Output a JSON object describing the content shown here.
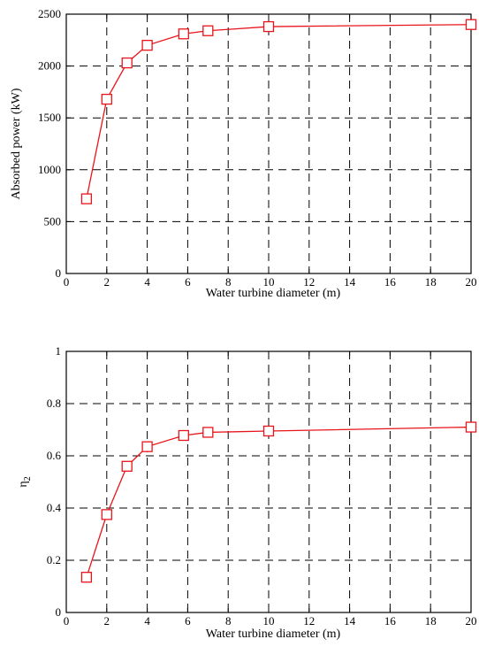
{
  "chart_data": [
    {
      "type": "line",
      "title": "",
      "xlabel": "Water turbine diameter (m)",
      "ylabel": "Absorbed power (kW)",
      "xlim": [
        0,
        20
      ],
      "ylim": [
        0,
        2500
      ],
      "xticks": [
        "0",
        "2",
        "4",
        "6",
        "8",
        "10",
        "12",
        "14",
        "16",
        "18",
        "20"
      ],
      "yticks": [
        "0",
        "500",
        "1000",
        "1500",
        "2000",
        "2500"
      ],
      "grid": true,
      "marker": "square",
      "color": "#e8141b",
      "series": [
        {
          "x": [
            1,
            2,
            3,
            4,
            5.8,
            7,
            10,
            20
          ],
          "y": [
            720,
            1680,
            2030,
            2200,
            2310,
            2340,
            2380,
            2400
          ]
        }
      ]
    },
    {
      "type": "line",
      "title": "",
      "xlabel": "Water turbine diameter (m)",
      "ylabel": "η2",
      "xlim": [
        0,
        20
      ],
      "ylim": [
        0,
        1
      ],
      "xticks": [
        "0",
        "2",
        "4",
        "6",
        "8",
        "10",
        "12",
        "14",
        "16",
        "18",
        "20"
      ],
      "yticks": [
        "0",
        "0.2",
        "0.4",
        "0.6",
        "0.8",
        "1"
      ],
      "grid": true,
      "marker": "square",
      "color": "#e8141b",
      "series": [
        {
          "x": [
            1,
            2,
            3,
            4,
            5.8,
            7,
            10,
            20
          ],
          "y": [
            0.135,
            0.375,
            0.56,
            0.635,
            0.678,
            0.69,
            0.695,
            0.71
          ]
        }
      ]
    }
  ]
}
